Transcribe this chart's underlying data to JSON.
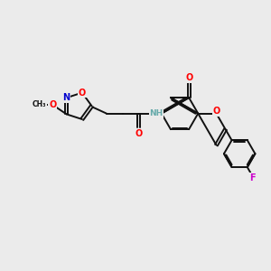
{
  "background_color": "#ebebeb",
  "atom_colors": {
    "N": "#0000cd",
    "O": "#ff0000",
    "F": "#cc00cc",
    "H_light": "#66aaaa"
  },
  "bond_color": "#111111",
  "bond_width": 1.4,
  "dbo": 0.055,
  "fs": 7.0
}
